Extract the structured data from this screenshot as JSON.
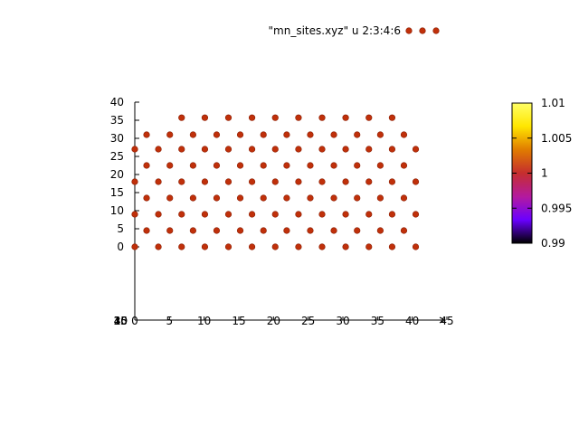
{
  "chart_data": {
    "type": "scatter",
    "title": "",
    "xlabel": "",
    "ylabel": "",
    "zlabel": "",
    "xlim": [
      0,
      45
    ],
    "ylim": [
      0,
      40
    ],
    "x_ticks": [
      0,
      5,
      10,
      15,
      20,
      25,
      30,
      35,
      40,
      45
    ],
    "y_ticks": [
      0,
      5,
      10,
      15,
      20,
      25,
      30,
      35,
      40
    ],
    "z_tick_labels": [
      "45",
      "40",
      "35",
      "30",
      "25",
      "20",
      "15",
      "10",
      "5"
    ],
    "legend": {
      "label": "\"mn_sites.xyz\" u 2:3:4:6",
      "position": "top-right"
    },
    "colorbar": {
      "range": [
        0.99,
        1.01
      ],
      "tick_labels": [
        "1.01",
        "1.005",
        "1",
        "0.995",
        "0.99"
      ],
      "palette": [
        "#000000",
        "#6a00ff",
        "#b41a9e",
        "#c52e2e",
        "#e07b00",
        "#ffe600",
        "#ffff66"
      ]
    },
    "point_color": "#c0300a",
    "point_value": 1.0,
    "series": [
      {
        "rows": [
          {
            "y": 0,
            "x": [
              0,
              3.4,
              6.75,
              10.1,
              13.5,
              16.9,
              20.25,
              23.6,
              27.0,
              30.4,
              33.75,
              37.1,
              40.5
            ]
          },
          {
            "y": 4.5,
            "x": [
              1.7,
              5.05,
              8.4,
              11.8,
              15.2,
              18.55,
              21.9,
              25.3,
              28.7,
              32.05,
              35.4,
              38.8
            ]
          },
          {
            "y": 9,
            "x": [
              0,
              3.4,
              6.75,
              10.1,
              13.5,
              16.9,
              20.25,
              23.6,
              27.0,
              30.4,
              33.75,
              37.1,
              40.5
            ]
          },
          {
            "y": 13.5,
            "x": [
              1.7,
              5.05,
              8.4,
              11.8,
              15.2,
              18.55,
              21.9,
              25.3,
              28.7,
              32.05,
              35.4,
              38.8
            ]
          },
          {
            "y": 18,
            "x": [
              0,
              3.4,
              6.75,
              10.1,
              13.5,
              16.9,
              20.25,
              23.6,
              27.0,
              30.4,
              33.75,
              37.1,
              40.5
            ]
          },
          {
            "y": 22.5,
            "x": [
              1.7,
              5.05,
              8.4,
              11.8,
              15.2,
              18.55,
              21.9,
              25.3,
              28.7,
              32.05,
              35.4,
              38.8
            ]
          },
          {
            "y": 27,
            "x": [
              0,
              3.4,
              6.75,
              10.1,
              13.5,
              16.9,
              20.25,
              23.6,
              27.0,
              30.4,
              33.75,
              37.1,
              40.5
            ]
          },
          {
            "y": 31,
            "x": [
              1.7,
              5.05,
              8.4,
              11.8,
              15.2,
              18.55,
              21.9,
              25.3,
              28.7,
              32.05,
              35.4,
              38.8
            ]
          },
          {
            "y": 35.7,
            "x": [
              6.75,
              10.1,
              13.5,
              16.9,
              20.25,
              23.6,
              27.0,
              30.4,
              33.75,
              37.1
            ]
          }
        ]
      }
    ]
  }
}
